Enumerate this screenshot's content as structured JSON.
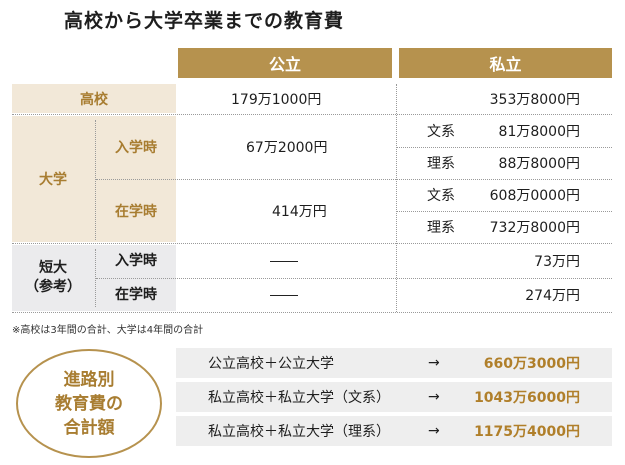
{
  "title": "高校から大学卒業までの教育費",
  "header": {
    "public": "公立",
    "private": "私立"
  },
  "rows": {
    "high_school": {
      "label": "高校",
      "public": "179万1000円",
      "private": "353万8000円"
    },
    "university": {
      "label": "大学",
      "admission": {
        "label": "入学時",
        "public": "67万2000円",
        "private": [
          {
            "field": "文系",
            "amount": "81万8000円"
          },
          {
            "field": "理系",
            "amount": "88万8000円"
          }
        ]
      },
      "enrolled": {
        "label": "在学時",
        "public": "414万円",
        "private": [
          {
            "field": "文系",
            "amount": "608万0000円"
          },
          {
            "field": "理系",
            "amount": "732万8000円"
          }
        ]
      }
    },
    "junior_college": {
      "label_line1": "短大",
      "label_line2": "（参考）",
      "admission": {
        "label": "入学時",
        "private": "73万円"
      },
      "enrolled": {
        "label": "在学時",
        "private": "274万円"
      }
    }
  },
  "note": "※高校は3年間の合計、大学は4年間の合計",
  "totals": {
    "badge_line1": "進路別",
    "badge_line2": "教育費の",
    "badge_line3": "合計額",
    "arrow": "→",
    "items": [
      {
        "route": "公立高校＋公立大学",
        "amount": "660万3000円"
      },
      {
        "route": "私立高校＋私立大学（文系）",
        "amount": "1043万6000円"
      },
      {
        "route": "私立高校＋私立大学（理系）",
        "amount": "1175万4000円"
      }
    ]
  }
}
